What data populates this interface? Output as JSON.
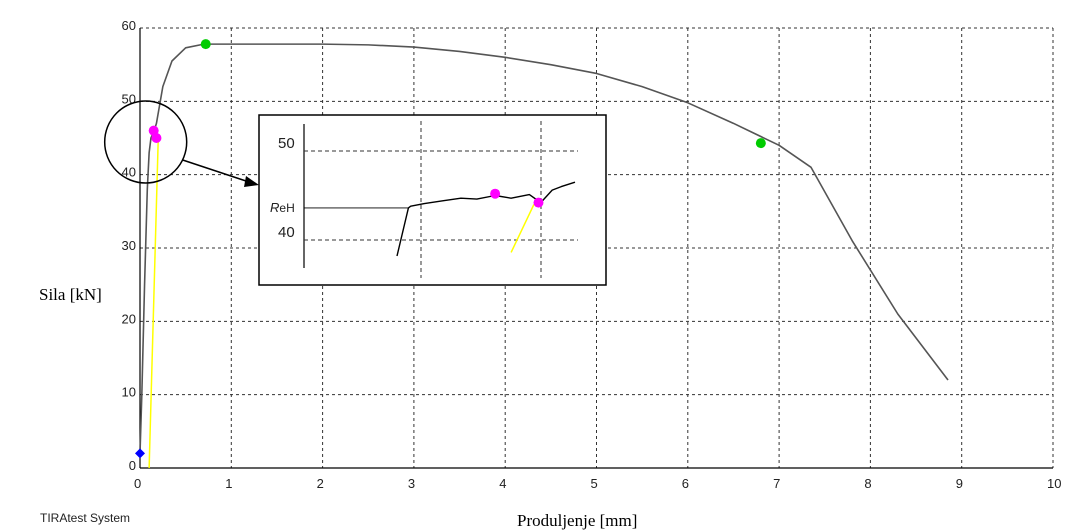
{
  "chart_data": {
    "type": "line",
    "title": "",
    "xlabel": "Produljenje [mm]",
    "ylabel": "Sila [kN]",
    "xlim": [
      0,
      10
    ],
    "ylim": [
      0,
      60
    ],
    "xticks": [
      "0",
      "1",
      "2",
      "3",
      "4",
      "5",
      "6",
      "7",
      "8",
      "9",
      "10"
    ],
    "yticks": [
      "0",
      "10",
      "20",
      "30",
      "40",
      "50",
      "60"
    ],
    "grid": true,
    "series": [
      {
        "role": "force-elongation curve",
        "color": "#555555",
        "x": [
          0,
          0.02,
          0.05,
          0.08,
          0.1,
          0.12,
          0.15,
          0.18,
          0.25,
          0.35,
          0.5,
          0.7,
          1.0,
          1.5,
          2.0,
          2.5,
          3.0,
          3.5,
          4.0,
          4.5,
          5.0,
          5.5,
          6.0,
          6.5,
          7.0,
          7.35,
          7.8,
          8.3,
          8.85
        ],
        "y": [
          2,
          10,
          25,
          38,
          43,
          45,
          45.8,
          47,
          52,
          55.5,
          57.3,
          57.8,
          57.8,
          57.8,
          57.8,
          57.7,
          57.4,
          56.8,
          56,
          55,
          53.8,
          52,
          49.8,
          47,
          44,
          41,
          31,
          21,
          12
        ]
      },
      {
        "role": "unloading line",
        "color": "#ffff00",
        "x": [
          0.1,
          0.2
        ],
        "y": [
          0,
          45
        ]
      }
    ],
    "markers": [
      {
        "x": 0.0,
        "y": 2,
        "color": "#0000ff"
      },
      {
        "x": 0.15,
        "y": 46,
        "color": "#ff00ff"
      },
      {
        "x": 0.18,
        "y": 45,
        "color": "#ff00ff"
      },
      {
        "x": 0.72,
        "y": 57.8,
        "color": "#00cc00"
      },
      {
        "x": 6.8,
        "y": 44.3,
        "color": "#00cc00"
      }
    ],
    "annotation": {
      "shape": "circle",
      "target_x": 0.15,
      "target_y": 45
    },
    "inset": {
      "yticks": [
        "50",
        "40"
      ],
      "label_prefix": "R",
      "label_suffix": "eH",
      "curve_x": [
        0.0,
        0.05,
        0.06,
        0.12,
        0.2,
        0.28,
        0.35,
        0.43,
        0.5,
        0.58,
        0.63,
        0.68,
        0.72,
        0.78
      ],
      "curve_y": [
        38.2,
        43.6,
        43.8,
        44.1,
        44.4,
        44.7,
        44.6,
        45,
        44.7,
        45.1,
        44.2,
        45.6,
        46,
        46.5
      ],
      "markers": [
        {
          "x": 0.43,
          "y": 45.2,
          "color": "#ff00ff"
        },
        {
          "x": 0.62,
          "y": 44.2,
          "color": "#ff00ff"
        }
      ],
      "unloading_x": [
        0.5,
        0.6
      ],
      "unloading_y": [
        38.6,
        44.0
      ]
    }
  },
  "footer": {
    "brand": "TIRAtest System"
  },
  "colors": {
    "grid": "#333333",
    "curve": "#555555",
    "axis": "#000000"
  }
}
